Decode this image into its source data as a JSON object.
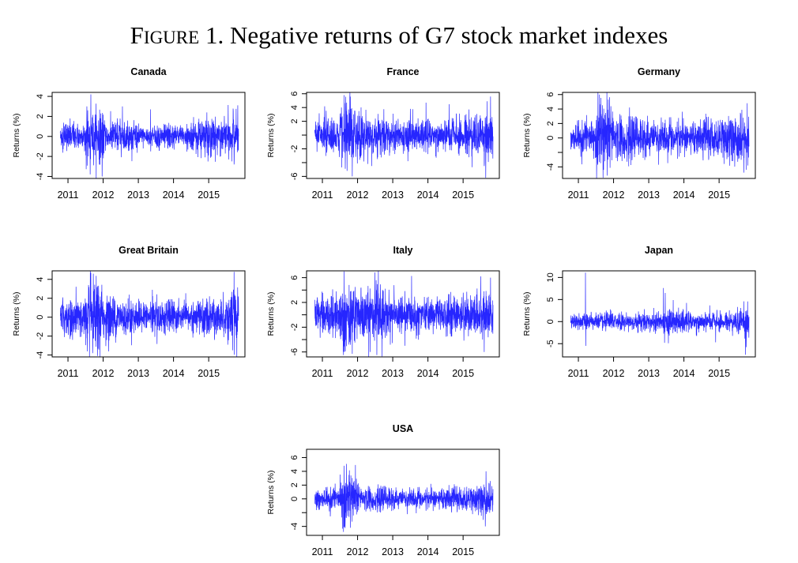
{
  "figure": {
    "title_prefix": "F",
    "title_caps": "IGURE",
    "title_rest": " 1.  Negative returns of G7 stock market indexes"
  },
  "chart_data": {
    "type": "line",
    "title": "FIGURE 1. Negative returns of G7 stock market indexes",
    "ylabel": "Returns (%)",
    "xticks": [
      2011,
      2012,
      2013,
      2014,
      2015
    ],
    "xlim": [
      2010.55,
      2016.03
    ],
    "date_range": [
      2010.78,
      2015.85
    ],
    "line_color": "#0000ff",
    "vol_segments_start": [
      2010.5,
      2011,
      2011.5,
      2012,
      2012.5,
      2013,
      2013.5,
      2014,
      2014.5,
      2015,
      2015.5
    ],
    "series": [
      {
        "name": "Canada",
        "ylim": [
          -4.2,
          4.4
        ],
        "yticks": [
          -4,
          -2,
          0,
          2,
          4
        ],
        "ylabels": [
          "-4",
          "-2",
          "0",
          "2",
          "4"
        ],
        "vol": [
          0.6,
          0.6,
          1.1,
          0.7,
          0.6,
          0.5,
          0.55,
          0.45,
          0.7,
          0.75,
          0.9
        ],
        "spikes": [
          [
            2011.65,
            4.2
          ],
          [
            2011.63,
            -3.8
          ],
          [
            2011.97,
            -4.0
          ],
          [
            2012.55,
            3.0
          ],
          [
            2013.35,
            2.7
          ],
          [
            2014.95,
            2.4
          ],
          [
            2014.98,
            -2.5
          ],
          [
            2015.72,
            3.2
          ],
          [
            2015.72,
            -2.8
          ]
        ]
      },
      {
        "name": "France",
        "ylim": [
          -6.3,
          6.2
        ],
        "yticks": [
          -6,
          -4,
          -2,
          0,
          2,
          4,
          6
        ],
        "ylabels": [
          "-6",
          "",
          "-2",
          "",
          "2",
          "4",
          "6"
        ],
        "vol": [
          1.1,
          1.1,
          2.0,
          1.4,
          1.2,
          1.0,
          1.0,
          0.9,
          1.1,
          1.3,
          1.5
        ],
        "spikes": [
          [
            2011.62,
            5.8
          ],
          [
            2011.78,
            5.5
          ],
          [
            2011.85,
            -6.0
          ],
          [
            2011.7,
            -5.2
          ],
          [
            2012.4,
            -4.5
          ],
          [
            2013.5,
            3.8
          ],
          [
            2015.78,
            5.6
          ],
          [
            2015.6,
            -4.5
          ]
        ]
      },
      {
        "name": "Germany",
        "ylim": [
          -5.6,
          6.3
        ],
        "yticks": [
          -4,
          -2,
          0,
          2,
          4,
          6
        ],
        "ylabels": [
          "-4",
          "",
          "0",
          "2",
          "4",
          "6"
        ],
        "vol": [
          1.0,
          1.0,
          2.0,
          1.4,
          1.1,
          1.0,
          1.0,
          0.9,
          1.1,
          1.3,
          1.5
        ],
        "spikes": [
          [
            2011.6,
            6.0
          ],
          [
            2011.7,
            -5.5
          ],
          [
            2011.82,
            -5.2
          ],
          [
            2011.85,
            5.3
          ],
          [
            2015.8,
            4.8
          ],
          [
            2015.7,
            -4.8
          ]
        ]
      },
      {
        "name": "Great Britain",
        "ylim": [
          -4.2,
          4.9
        ],
        "yticks": [
          -4,
          -2,
          0,
          2,
          4
        ],
        "ylabels": [
          "-4",
          "-2",
          "0",
          "2",
          "4"
        ],
        "vol": [
          0.9,
          0.9,
          1.5,
          1.0,
          0.8,
          0.7,
          0.75,
          0.6,
          0.8,
          0.9,
          1.2
        ],
        "spikes": [
          [
            2011.65,
            4.7
          ],
          [
            2011.72,
            4.6
          ],
          [
            2011.7,
            -3.8
          ],
          [
            2013.4,
            2.9
          ],
          [
            2015.72,
            4.8
          ],
          [
            2015.68,
            -3.5
          ]
        ]
      },
      {
        "name": "Italy",
        "ylim": [
          -6.8,
          7.1
        ],
        "yticks": [
          -6,
          -4,
          -2,
          0,
          2,
          4,
          6
        ],
        "ylabels": [
          "-6",
          "",
          "-2",
          "",
          "2",
          "",
          "6"
        ],
        "vol": [
          1.4,
          1.4,
          2.4,
          2.0,
          1.7,
          1.3,
          1.2,
          1.1,
          1.3,
          1.4,
          1.6
        ],
        "spikes": [
          [
            2011.62,
            7.0
          ],
          [
            2011.85,
            -6.3
          ],
          [
            2012.55,
            -6.5
          ],
          [
            2013.35,
            -5.0
          ],
          [
            2015.5,
            6.2
          ],
          [
            2015.78,
            6.0
          ],
          [
            2015.6,
            -6.0
          ]
        ]
      },
      {
        "name": "Japan",
        "ylim": [
          -8,
          11.5
        ],
        "yticks": [
          -5,
          0,
          5,
          10
        ],
        "ylabels": [
          "-5",
          "0",
          "5",
          "10"
        ],
        "vol": [
          0.8,
          0.8,
          0.9,
          0.8,
          0.9,
          1.0,
          1.3,
          0.9,
          0.9,
          0.9,
          1.4
        ],
        "spikes": [
          [
            2011.2,
            11.1
          ],
          [
            2011.21,
            -5.5
          ],
          [
            2013.42,
            7.6
          ],
          [
            2013.47,
            6.5
          ],
          [
            2013.45,
            -4.8
          ],
          [
            2014.9,
            -4.7
          ],
          [
            2015.7,
            4.6
          ],
          [
            2015.75,
            -7.5
          ]
        ]
      },
      {
        "name": "USA",
        "ylim": [
          -5.3,
          7.2
        ],
        "yticks": [
          -4,
          -2,
          0,
          2,
          4,
          6
        ],
        "ylabels": [
          "-4",
          "",
          "0",
          "2",
          "4",
          "6"
        ],
        "vol": [
          0.7,
          0.7,
          1.5,
          0.8,
          0.7,
          0.6,
          0.6,
          0.6,
          0.7,
          0.8,
          1.0
        ],
        "spikes": [
          [
            2011.6,
            6.9
          ],
          [
            2011.62,
            4.8
          ],
          [
            2011.6,
            -4.8
          ],
          [
            2011.8,
            -4.2
          ],
          [
            2015.65,
            4.0
          ],
          [
            2015.63,
            -4.0
          ]
        ]
      }
    ]
  }
}
